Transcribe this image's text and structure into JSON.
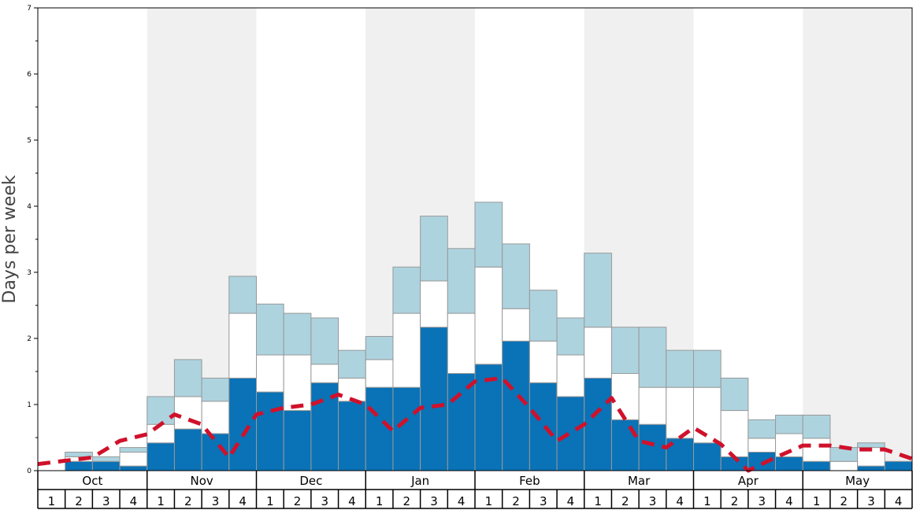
{
  "chart_data": {
    "type": "bar",
    "ylabel": "Days per week",
    "ylim": [
      0,
      7
    ],
    "y_ticks": [
      "0",
      "1",
      "2",
      "3",
      "4",
      "5",
      "6",
      "7"
    ],
    "months": [
      "Oct",
      "Nov",
      "Dec",
      "Jan",
      "Feb",
      "Mar",
      "Apr",
      "May"
    ],
    "weeks": [
      "1",
      "2",
      "3",
      "4"
    ],
    "stacked": true,
    "series": [
      {
        "values": [
          0.0,
          0.14,
          0.14,
          0.07,
          0.42,
          0.63,
          0.56,
          1.4,
          1.19,
          0.91,
          1.33,
          1.05,
          1.26,
          1.26,
          2.17,
          1.47,
          1.61,
          1.96,
          1.33,
          1.12,
          1.4,
          0.77,
          0.7,
          0.49,
          0.42,
          0.21,
          0.28,
          0.21,
          0.14,
          0.0,
          0.07,
          0.14
        ]
      },
      {
        "values": [
          0.0,
          0.07,
          0.0,
          0.21,
          0.28,
          0.49,
          0.49,
          0.98,
          0.56,
          0.84,
          0.28,
          0.35,
          0.42,
          1.12,
          0.7,
          0.91,
          1.47,
          0.49,
          0.63,
          0.63,
          0.77,
          0.7,
          0.56,
          0.77,
          0.84,
          0.7,
          0.21,
          0.35,
          0.35,
          0.14,
          0.28,
          0.0
        ]
      },
      {
        "values": [
          0.0,
          0.07,
          0.07,
          0.07,
          0.42,
          0.56,
          0.35,
          0.56,
          0.77,
          0.63,
          0.7,
          0.42,
          0.35,
          0.7,
          0.98,
          0.98,
          0.98,
          0.98,
          0.77,
          0.56,
          1.12,
          0.7,
          0.91,
          0.56,
          0.56,
          0.49,
          0.28,
          0.28,
          0.35,
          0.21,
          0.07,
          0.0
        ]
      }
    ],
    "dashed_line": {
      "values": [
        0.1,
        0.15,
        0.2,
        0.45,
        0.55,
        0.85,
        0.7,
        0.2,
        0.85,
        0.95,
        1.0,
        1.15,
        1.0,
        0.6,
        0.95,
        1.0,
        1.35,
        1.4,
        0.95,
        0.45,
        0.7,
        1.1,
        0.45,
        0.35,
        0.65,
        0.4,
        0.0,
        0.2,
        0.38,
        0.38,
        0.32,
        0.32,
        0.18
      ]
    },
    "colors": {
      "series_1": "#0a72b6",
      "series_2": "#ffffff",
      "series_3": "#add3df",
      "bar_stroke": "#999999",
      "dashed_line": "#d0112b",
      "band_shade": "#f0f0f0"
    },
    "grid": false
  }
}
